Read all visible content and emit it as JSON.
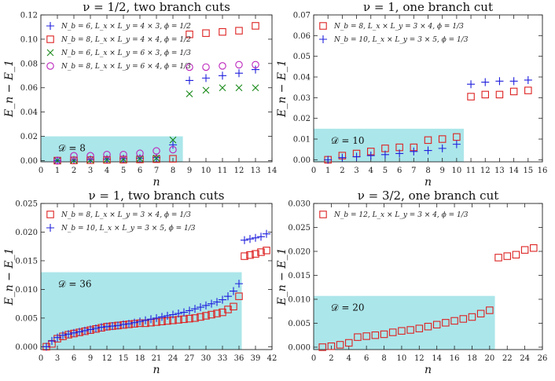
{
  "chart_data": [
    {
      "type": "scatter",
      "title": "ν = 1/2, two branch cuts",
      "xlabel": "n",
      "ylabel": "E_n − E_1",
      "xlim": [
        0,
        14
      ],
      "ylim": [
        -0.001,
        0.12
      ],
      "xticks": [
        0,
        1,
        2,
        3,
        4,
        5,
        6,
        7,
        8,
        9,
        10,
        11,
        12,
        13,
        14
      ],
      "yticks": [
        0.0,
        0.02,
        0.04,
        0.06,
        0.08,
        0.1,
        0.12
      ],
      "ytick_labels": [
        "0.00",
        "0.02",
        "0.04",
        "0.06",
        "0.08",
        "0.10",
        "0.12"
      ],
      "legend_position": "top-left",
      "highlight": {
        "label": "𝒟 = 8",
        "x_end": 8.6,
        "y_top": 0.02
      },
      "series": [
        {
          "name": "N_b = 6, L_x × L_y = 4 × 3, ϕ = 1/2",
          "marker": "plus",
          "color": "#1f1fdd",
          "x": [
            1,
            2,
            3,
            4,
            5,
            6,
            7,
            8,
            9,
            10,
            11,
            12,
            13
          ],
          "y": [
            0.0,
            0.0004,
            0.0008,
            0.0012,
            0.0016,
            0.002,
            0.0025,
            0.013,
            0.066,
            0.068,
            0.07,
            0.072,
            0.075
          ]
        },
        {
          "name": "N_b = 8, L_x × L_y = 4 × 4, ϕ = 1/2",
          "marker": "square",
          "color": "#dd2222",
          "x": [
            1,
            2,
            3,
            4,
            5,
            6,
            7,
            8,
            9,
            10,
            11,
            12,
            13
          ],
          "y": [
            0.0,
            0.0002,
            0.0004,
            0.0006,
            0.0008,
            0.001,
            0.0012,
            0.0015,
            0.104,
            0.105,
            0.106,
            0.107,
            0.111
          ]
        },
        {
          "name": "N_b = 6, L_x × L_y = 6 × 3, ϕ = 1/3",
          "marker": "x",
          "color": "#1a8a1a",
          "x": [
            1,
            2,
            3,
            4,
            5,
            6,
            7,
            8,
            9,
            10,
            11,
            12,
            13
          ],
          "y": [
            0.0,
            0.0003,
            0.0006,
            0.001,
            0.0013,
            0.0017,
            0.002,
            0.017,
            0.055,
            0.058,
            0.06,
            0.06,
            0.06
          ]
        },
        {
          "name": "N_b = 8, L_x × L_y = 6 × 4, ϕ = 1/3",
          "marker": "circle",
          "color": "#bb22bb",
          "x": [
            1,
            2,
            3,
            4,
            5,
            6,
            7,
            8,
            9,
            10,
            11,
            12,
            13
          ],
          "y": [
            0.0,
            0.004,
            0.004,
            0.005,
            0.005,
            0.006,
            0.008,
            0.009,
            0.077,
            0.077,
            0.078,
            0.079,
            0.079
          ]
        }
      ]
    },
    {
      "type": "scatter",
      "title": "ν = 1, one branch cut",
      "xlabel": "n",
      "ylabel": "E_n − E_1",
      "xlim": [
        0,
        16
      ],
      "ylim": [
        -0.001,
        0.07
      ],
      "xticks": [
        0,
        1,
        2,
        3,
        4,
        5,
        6,
        7,
        8,
        9,
        10,
        11,
        12,
        13,
        14,
        15,
        16
      ],
      "yticks": [
        0.0,
        0.01,
        0.02,
        0.03,
        0.04,
        0.05,
        0.06,
        0.07
      ],
      "ytick_labels": [
        "0.00",
        "0.01",
        "0.02",
        "0.03",
        "0.04",
        "0.05",
        "0.06",
        "0.07"
      ],
      "legend_position": "top-left",
      "highlight": {
        "label": "𝒟 = 10",
        "x_end": 10.5,
        "y_top": 0.015
      },
      "series": [
        {
          "name": "N_b = 8, L_x × L_y = 3 × 4, ϕ = 1/3",
          "marker": "square",
          "color": "#dd2222",
          "x": [
            1,
            2,
            3,
            4,
            5,
            6,
            7,
            8,
            9,
            10,
            11,
            12,
            13,
            14,
            15
          ],
          "y": [
            0.0,
            0.002,
            0.003,
            0.004,
            0.0055,
            0.006,
            0.006,
            0.0095,
            0.01,
            0.011,
            0.0305,
            0.0315,
            0.0315,
            0.033,
            0.0335
          ]
        },
        {
          "name": "N_b = 10, L_x × L_y = 3 × 5, ϕ = 1/3",
          "marker": "plus",
          "color": "#1f1fdd",
          "x": [
            1,
            2,
            3,
            4,
            5,
            6,
            7,
            8,
            9,
            10,
            11,
            12,
            13,
            14,
            15
          ],
          "y": [
            0.0,
            0.001,
            0.0015,
            0.002,
            0.0025,
            0.003,
            0.004,
            0.0045,
            0.0055,
            0.0075,
            0.0365,
            0.0375,
            0.038,
            0.038,
            0.0385
          ]
        }
      ]
    },
    {
      "type": "scatter",
      "title": "ν = 1, two branch cuts",
      "xlabel": "n",
      "ylabel": "E_n − E_1",
      "xlim": [
        0,
        42
      ],
      "ylim": [
        -0.0005,
        0.025
      ],
      "xticks": [
        0,
        3,
        6,
        9,
        12,
        15,
        18,
        21,
        24,
        27,
        30,
        33,
        36,
        39,
        42
      ],
      "yticks": [
        0.0,
        0.005,
        0.01,
        0.015,
        0.02,
        0.025
      ],
      "ytick_labels": [
        "0.000",
        "0.005",
        "0.010",
        "0.015",
        "0.020",
        "0.025"
      ],
      "legend_position": "top-left",
      "highlight": {
        "label": "𝒟 = 36",
        "x_end": 36.5,
        "y_top": 0.013
      },
      "series": [
        {
          "name": "N_b = 8, L_x × L_y = 3 × 4, ϕ = 1/3",
          "marker": "square",
          "color": "#dd2222",
          "x": [
            1,
            2,
            3,
            4,
            5,
            6,
            7,
            8,
            9,
            10,
            11,
            12,
            13,
            14,
            15,
            16,
            17,
            18,
            19,
            20,
            21,
            22,
            23,
            24,
            25,
            26,
            27,
            28,
            29,
            30,
            31,
            32,
            33,
            34,
            35,
            36,
            37,
            38,
            39,
            40,
            41
          ],
          "y": [
            0.0,
            0.0005,
            0.0014,
            0.0018,
            0.0021,
            0.0023,
            0.0025,
            0.0027,
            0.0029,
            0.0031,
            0.0033,
            0.0035,
            0.0036,
            0.0037,
            0.0038,
            0.0039,
            0.004,
            0.0041,
            0.0041,
            0.0042,
            0.0043,
            0.0044,
            0.0045,
            0.0046,
            0.0047,
            0.0048,
            0.0049,
            0.005,
            0.0052,
            0.0054,
            0.0056,
            0.0058,
            0.006,
            0.0065,
            0.007,
            0.0088,
            0.0158,
            0.016,
            0.0162,
            0.0165,
            0.0168
          ]
        },
        {
          "name": "N_b = 10, L_x × L_y = 3 × 5, ϕ = 1/3",
          "marker": "plus",
          "color": "#1f1fdd",
          "x": [
            1,
            2,
            3,
            4,
            5,
            6,
            7,
            8,
            9,
            10,
            11,
            12,
            13,
            14,
            15,
            16,
            17,
            18,
            19,
            20,
            21,
            22,
            23,
            24,
            25,
            26,
            27,
            28,
            29,
            30,
            31,
            32,
            33,
            34,
            35,
            36,
            37,
            38,
            39,
            40,
            41
          ],
          "y": [
            0.0,
            0.001,
            0.0016,
            0.002,
            0.0022,
            0.0024,
            0.0026,
            0.0028,
            0.003,
            0.0032,
            0.0034,
            0.0035,
            0.0036,
            0.0037,
            0.0039,
            0.004,
            0.0042,
            0.0044,
            0.0046,
            0.0048,
            0.005,
            0.0052,
            0.0054,
            0.0056,
            0.0058,
            0.006,
            0.0063,
            0.0066,
            0.0069,
            0.0072,
            0.0075,
            0.0078,
            0.0082,
            0.0088,
            0.0097,
            0.011,
            0.0186,
            0.0188,
            0.019,
            0.0192,
            0.0197
          ]
        }
      ]
    },
    {
      "type": "scatter",
      "title": "ν = 3/2, one branch cut",
      "xlabel": "n",
      "ylabel": "E_n − E_1",
      "xlim": [
        0,
        26
      ],
      "ylim": [
        -0.0005,
        0.03
      ],
      "xticks": [
        0,
        2,
        4,
        6,
        8,
        10,
        12,
        14,
        16,
        18,
        20,
        22,
        24,
        26
      ],
      "yticks": [
        0.0,
        0.005,
        0.01,
        0.015,
        0.02,
        0.025,
        0.03
      ],
      "ytick_labels": [
        "0.000",
        "0.005",
        "0.010",
        "0.015",
        "0.020",
        "0.025",
        "0.030"
      ],
      "legend_position": "top-left",
      "highlight": {
        "label": "𝒟 = 20",
        "x_end": 20.6,
        "y_top": 0.0107
      },
      "series": [
        {
          "name": "N_b = 12, L_x × L_y = 3 × 4, ϕ = 1/3",
          "marker": "square",
          "color": "#dd2222",
          "x": [
            1,
            2,
            3,
            4,
            5,
            6,
            7,
            8,
            9,
            10,
            11,
            12,
            13,
            14,
            15,
            16,
            17,
            18,
            19,
            20,
            21,
            22,
            23,
            24,
            25
          ],
          "y": [
            0.0,
            0.0002,
            0.0005,
            0.0009,
            0.0021,
            0.0023,
            0.0025,
            0.0027,
            0.0031,
            0.0034,
            0.0036,
            0.0039,
            0.0043,
            0.0047,
            0.0051,
            0.0055,
            0.0059,
            0.0063,
            0.007,
            0.0077,
            0.0187,
            0.019,
            0.0193,
            0.0203,
            0.0207
          ]
        }
      ]
    }
  ]
}
